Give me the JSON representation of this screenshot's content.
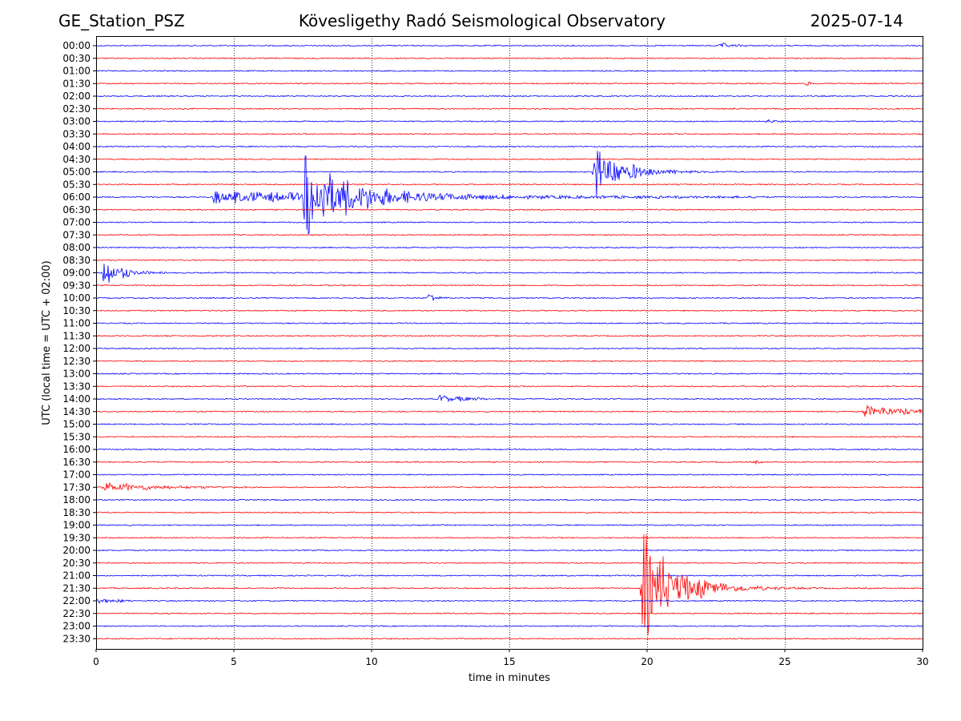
{
  "header": {
    "station": "GE_Station_PSZ",
    "observatory": "Kövesligethy Radó Seismological Observatory",
    "date": "2025-07-14"
  },
  "chart_data": {
    "type": "line",
    "title": "Kövesligethy Radó Seismological Observatory",
    "xlabel": "time in minutes",
    "ylabel": "UTC (local time = UTC + 02:00)",
    "xlim": [
      0,
      30
    ],
    "x_ticks": [
      0,
      5,
      10,
      15,
      20,
      25,
      30
    ],
    "x_tick_labels": [
      "0",
      "5",
      "10",
      "15",
      "20",
      "25",
      "30"
    ],
    "grid": "vertical dotted lines at x ticks",
    "row_labels": [
      "00:00",
      "00:30",
      "01:00",
      "01:30",
      "02:00",
      "02:30",
      "03:00",
      "03:30",
      "04:00",
      "04:30",
      "05:00",
      "05:30",
      "06:00",
      "06:30",
      "07:00",
      "07:30",
      "08:00",
      "08:30",
      "09:00",
      "09:30",
      "10:00",
      "10:30",
      "11:00",
      "11:30",
      "12:00",
      "12:30",
      "13:00",
      "13:30",
      "14:00",
      "14:30",
      "15:00",
      "15:30",
      "16:00",
      "16:30",
      "17:00",
      "17:30",
      "18:00",
      "18:30",
      "19:00",
      "19:30",
      "20:00",
      "20:30",
      "21:00",
      "21:30",
      "22:00",
      "22:30",
      "23:00",
      "23:30"
    ],
    "colors": [
      "#0000ff",
      "#ff0000"
    ],
    "noise_amplitude": 0.7,
    "events": [
      {
        "row": "00:00",
        "start": 22.6,
        "end": 24.5,
        "amplitude": 2.5,
        "decay": 0.5
      },
      {
        "row": "01:30",
        "start": 25.7,
        "end": 26.1,
        "amplitude": 2.5,
        "decay": 0.2
      },
      {
        "row": "03:00",
        "start": 24.3,
        "end": 25.0,
        "amplitude": 2.0,
        "decay": 0.3
      },
      {
        "row": "05:00",
        "start": 18.0,
        "end": 27.5,
        "amplitude": 30.0,
        "decay": 1.0
      },
      {
        "row": "06:00",
        "start": 4.2,
        "end": 24.5,
        "amplitude": 6.0,
        "decay": 8.0
      },
      {
        "row": "06:00",
        "start": 7.5,
        "end": 15.0,
        "amplitude": 42.0,
        "decay": 1.5
      },
      {
        "row": "09:00",
        "start": 0.2,
        "end": 2.5,
        "amplitude": 18.0,
        "decay": 0.6
      },
      {
        "row": "10:00",
        "start": 12.0,
        "end": 12.8,
        "amplitude": 6.0,
        "decay": 0.3
      },
      {
        "row": "14:00",
        "start": 12.4,
        "end": 14.2,
        "amplitude": 4.0,
        "decay": 1.0
      },
      {
        "row": "14:30",
        "start": 27.8,
        "end": 30.0,
        "amplitude": 6.0,
        "decay": 2.0
      },
      {
        "row": "16:30",
        "start": 23.8,
        "end": 24.2,
        "amplitude": 2.0,
        "decay": 0.2
      },
      {
        "row": "17:30",
        "start": 0.2,
        "end": 5.5,
        "amplitude": 5.0,
        "decay": 1.8
      },
      {
        "row": "21:30",
        "start": 19.75,
        "end": 30.0,
        "amplitude": 60.0,
        "decay": 1.2
      },
      {
        "row": "22:00",
        "start": 0.0,
        "end": 1.3,
        "amplitude": 2.5,
        "decay": 0.8
      }
    ]
  }
}
